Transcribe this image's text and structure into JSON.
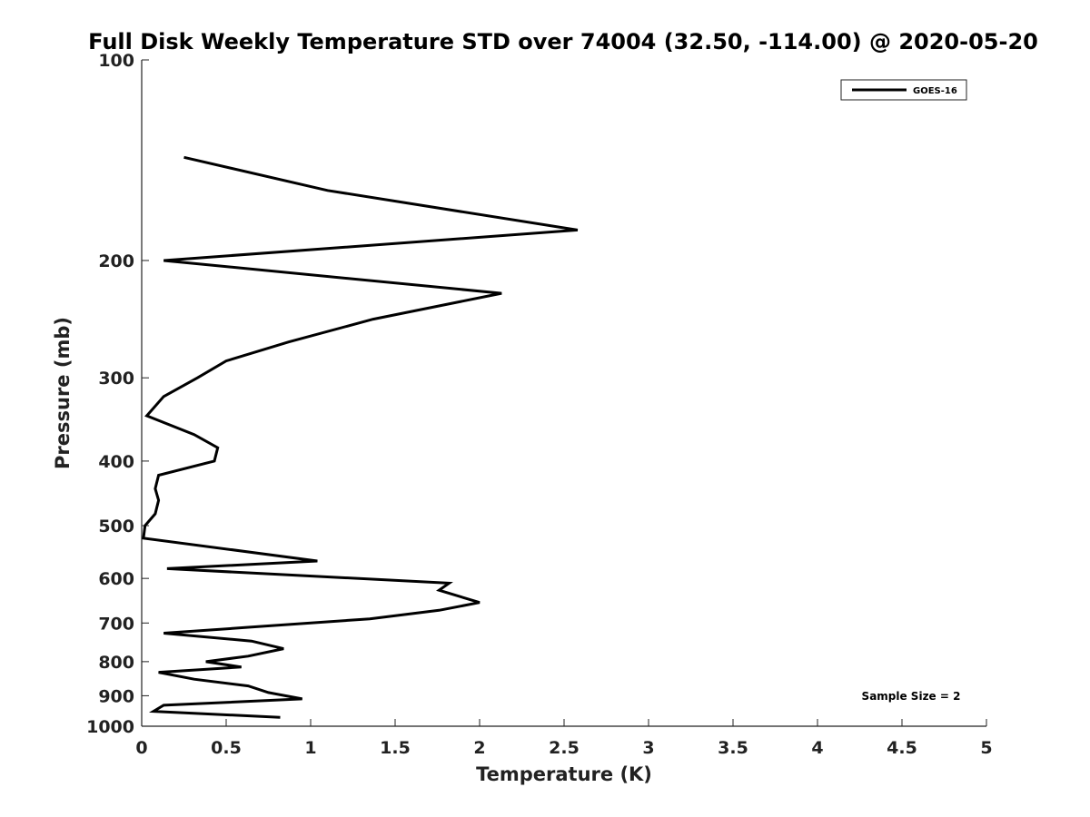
{
  "chart_data": {
    "type": "line",
    "title": "Full Disk Weekly Temperature STD over 74004 (32.50, -114.00) @ 2020-05-20",
    "xlabel": "Temperature (K)",
    "ylabel": "Pressure (mb)",
    "xlim": [
      0,
      5
    ],
    "ylim": [
      100,
      1000
    ],
    "yscale": "log",
    "y_reversed": true,
    "grid": false,
    "legend_position": "top-right",
    "xticks": [
      "0",
      "0.5",
      "1",
      "1.5",
      "2",
      "2.5",
      "3",
      "3.5",
      "4",
      "4.5",
      "5"
    ],
    "yticks": [
      "100",
      "200",
      "300",
      "400",
      "500",
      "600",
      "700",
      "800",
      "900",
      "1000"
    ],
    "annotation": "Sample Size = 2",
    "series": [
      {
        "name": "GOES-16",
        "color": "#000000",
        "x": [
          0.25,
          1.1,
          2.58,
          0.13,
          2.13,
          1.37,
          0.87,
          0.5,
          0.33,
          0.13,
          0.03,
          0.31,
          0.45,
          0.43,
          0.1,
          0.08,
          0.1,
          0.08,
          0.02,
          0.01,
          1.04,
          0.15,
          1.82,
          1.76,
          2.0,
          1.76,
          1.35,
          0.65,
          0.13,
          0.65,
          0.84,
          0.63,
          0.38,
          0.59,
          0.1,
          0.31,
          0.63,
          0.75,
          0.95,
          0.13,
          0.07,
          0.82
        ],
        "y": [
          140,
          157,
          180,
          200,
          224,
          245,
          265,
          283,
          300,
          320,
          342,
          365,
          382,
          400,
          420,
          440,
          458,
          480,
          500,
          522,
          565,
          580,
          610,
          625,
          652,
          670,
          690,
          710,
          725,
          745,
          765,
          785,
          800,
          815,
          830,
          850,
          870,
          890,
          910,
          930,
          950,
          970
        ]
      }
    ]
  }
}
